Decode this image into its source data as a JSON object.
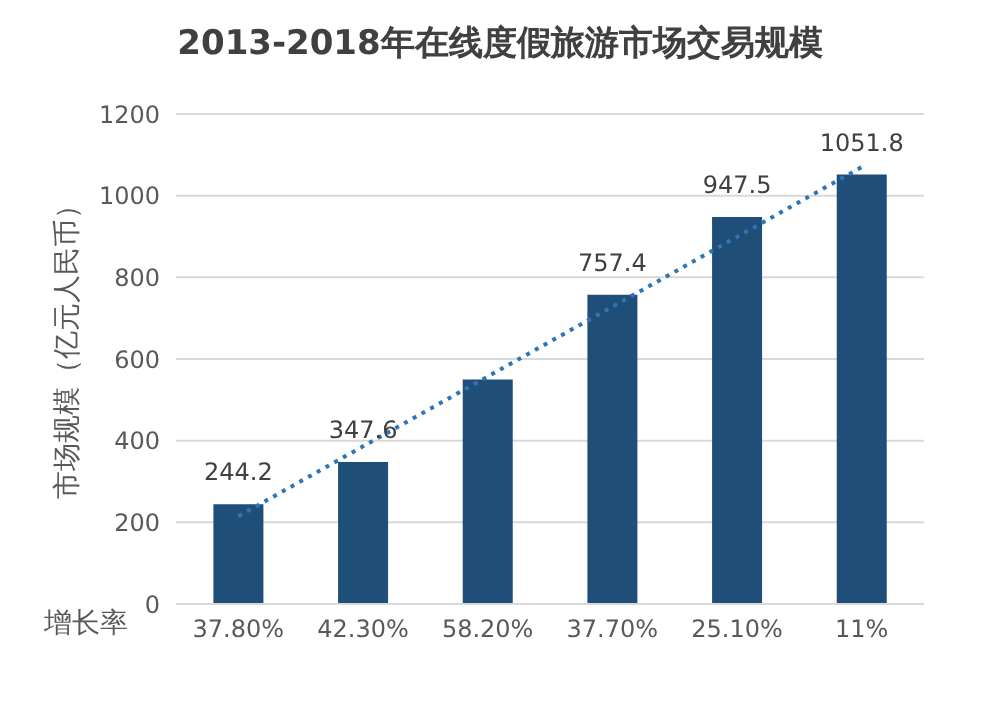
{
  "chart_data": {
    "type": "bar",
    "title": "2013-2018年在线度假旅游市场交易规模",
    "ylabel": "市场规模（亿元人民币）",
    "annotations": [
      "增长率"
    ],
    "categories": [
      "37.80%",
      "42.30%",
      "58.20%",
      "37.70%",
      "25.10%",
      "11%"
    ],
    "series": [
      {
        "color": "#1f4e79",
        "values": [
          244.2,
          347.6,
          550,
          757.4,
          947.5,
          1051.8
        ],
        "value_labels": [
          "244.2",
          "347.6",
          null,
          "757.4",
          "947.5",
          "1051.8"
        ]
      },
      {
        "type": "line",
        "color": "#2e75b6",
        "line_style": "dotted",
        "values": [
          215,
          null,
          null,
          null,
          null,
          1070
        ]
      }
    ],
    "ylim": [
      0,
      1200
    ],
    "yticks": [
      0,
      200,
      400,
      600,
      800,
      1000,
      1200
    ],
    "grid": "y",
    "legend": false,
    "marker": "none"
  }
}
